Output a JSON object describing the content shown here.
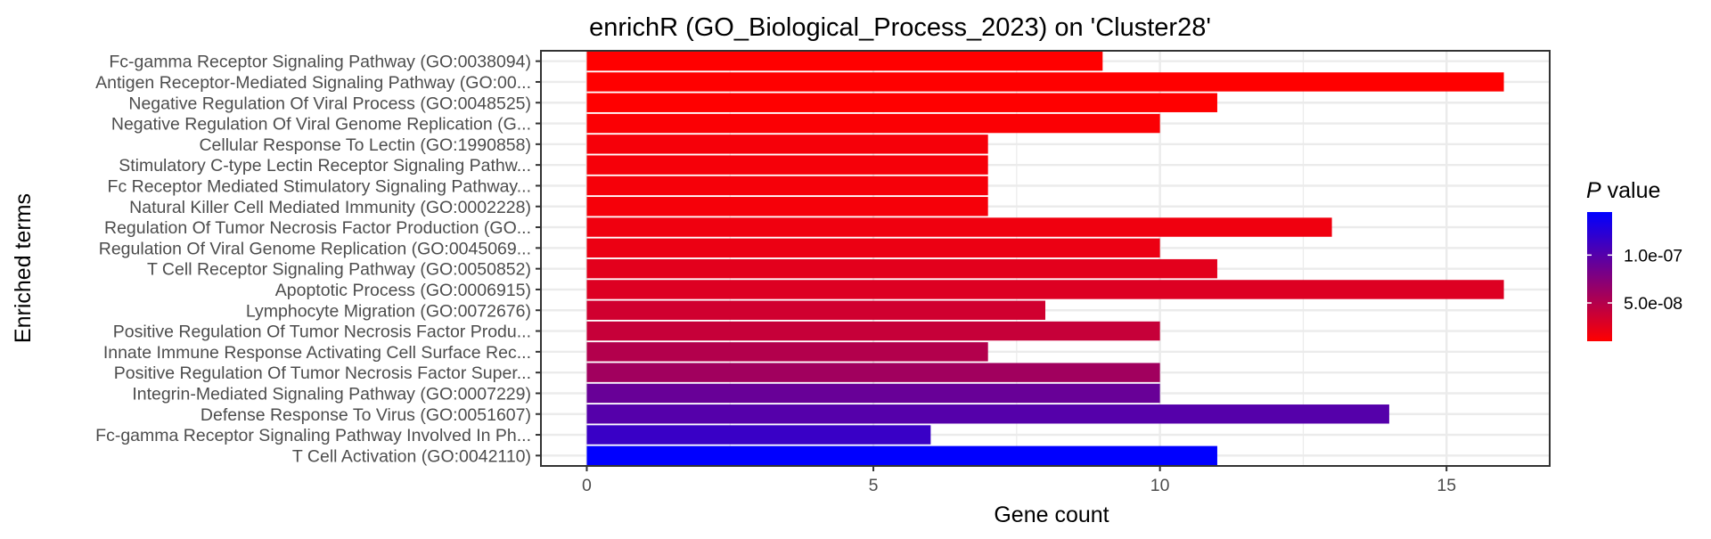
{
  "chart_data": {
    "type": "bar",
    "orientation": "horizontal",
    "title": "enrichR (GO_Biological_Process_2023) on 'Cluster28'",
    "xlabel": "Gene count",
    "ylabel": "Enriched terms",
    "xlim": [
      -0.8,
      16.8
    ],
    "x_ticks": [
      0,
      5,
      10,
      15
    ],
    "grid": true,
    "legend": {
      "title_italic": "P",
      "title_rest": " value",
      "placement": "right",
      "tick_values": [
        1e-07,
        5e-08
      ],
      "tick_labels": [
        "1.0e-07",
        "5.0e-08"
      ],
      "range": [
        1e-08,
        1.45e-07
      ],
      "color_low": "#ff0000",
      "color_high": "#0000ff"
    },
    "categories": [
      "Fc-gamma Receptor Signaling Pathway (GO:0038094)",
      "Antigen Receptor-Mediated Signaling Pathway (GO:00...",
      "Negative Regulation Of Viral Process (GO:0048525)",
      "Negative Regulation Of Viral Genome Replication (G...",
      "Cellular Response To Lectin (GO:1990858)",
      "Stimulatory C-type Lectin Receptor Signaling Pathw...",
      "Fc Receptor Mediated Stimulatory Signaling Pathway...",
      "Natural Killer Cell Mediated Immunity (GO:0002228)",
      "Regulation Of Tumor Necrosis Factor Production (GO...",
      "Regulation Of Viral Genome Replication (GO:0045069...",
      "T Cell Receptor Signaling Pathway (GO:0050852)",
      "Apoptotic Process (GO:0006915)",
      "Lymphocyte Migration (GO:0072676)",
      "Positive Regulation Of Tumor Necrosis Factor Produ...",
      "Innate Immune Response Activating Cell Surface Rec...",
      "Positive Regulation Of Tumor Necrosis Factor Super...",
      "Integrin-Mediated Signaling Pathway (GO:0007229)",
      "Defense Response To Virus (GO:0051607)",
      "Fc-gamma Receptor Signaling Pathway Involved In Ph...",
      "T Cell Activation (GO:0042110)"
    ],
    "values": [
      9,
      16,
      11,
      10,
      7,
      7,
      7,
      7,
      13,
      10,
      11,
      16,
      8,
      10,
      7,
      10,
      10,
      14,
      6,
      11
    ],
    "pvalues": [
      1e-08,
      1e-08,
      1e-08,
      1.2e-08,
      1.5e-08,
      1.5e-08,
      1.5e-08,
      1.5e-08,
      1.8e-08,
      2e-08,
      2.5e-08,
      2.8e-08,
      3.5e-08,
      4e-08,
      5e-08,
      6e-08,
      9e-08,
      1e-07,
      1.15e-07,
      1.45e-07
    ]
  }
}
